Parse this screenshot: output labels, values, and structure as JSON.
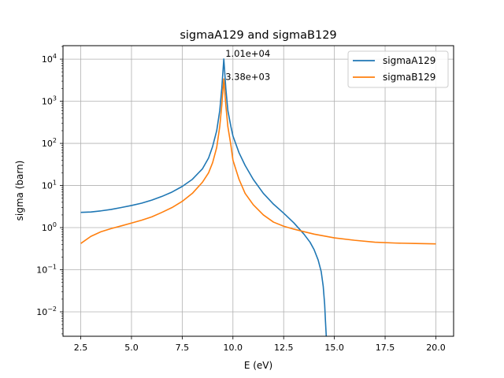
{
  "chart_data": {
    "type": "line",
    "title": "sigmaA129 and sigmaB129",
    "xlabel": "E (eV)",
    "ylabel": "sigma (barn)",
    "xlim": [
      1.625,
      20.875
    ],
    "ylim_log10": [
      -2.58,
      4.32
    ],
    "yscale": "log",
    "grid": true,
    "legend_position": "top-right",
    "x_ticks": [
      {
        "value": 2.5,
        "label": "2.5"
      },
      {
        "value": 5.0,
        "label": "5.0"
      },
      {
        "value": 7.5,
        "label": "7.5"
      },
      {
        "value": 10.0,
        "label": "10.0"
      },
      {
        "value": 12.5,
        "label": "12.5"
      },
      {
        "value": 15.0,
        "label": "15.0"
      },
      {
        "value": 17.5,
        "label": "17.5"
      },
      {
        "value": 20.0,
        "label": "20.0"
      }
    ],
    "y_ticks": [
      {
        "log10": -2,
        "base": "10",
        "exp": "−2"
      },
      {
        "log10": -1,
        "base": "10",
        "exp": "−1"
      },
      {
        "log10": 0,
        "base": "10",
        "exp": "0"
      },
      {
        "log10": 1,
        "base": "10",
        "exp": "1"
      },
      {
        "log10": 2,
        "base": "10",
        "exp": "2"
      },
      {
        "log10": 3,
        "base": "10",
        "exp": "3"
      },
      {
        "log10": 4,
        "base": "10",
        "exp": "4"
      }
    ],
    "series": [
      {
        "name": "sigmaA129",
        "color": "#1f77b4",
        "points": [
          [
            2.5,
            2.3
          ],
          [
            3.0,
            2.35
          ],
          [
            3.5,
            2.5
          ],
          [
            4.0,
            2.7
          ],
          [
            4.5,
            3.0
          ],
          [
            5.0,
            3.35
          ],
          [
            5.5,
            3.8
          ],
          [
            6.0,
            4.5
          ],
          [
            6.5,
            5.5
          ],
          [
            7.0,
            7.0
          ],
          [
            7.5,
            9.5
          ],
          [
            8.0,
            14
          ],
          [
            8.5,
            25
          ],
          [
            8.8,
            45
          ],
          [
            9.0,
            85
          ],
          [
            9.2,
            200
          ],
          [
            9.35,
            600
          ],
          [
            9.45,
            2000
          ],
          [
            9.55,
            10100
          ],
          [
            9.65,
            2000
          ],
          [
            9.75,
            600
          ],
          [
            9.9,
            250
          ],
          [
            10.0,
            150
          ],
          [
            10.3,
            60
          ],
          [
            10.6,
            30
          ],
          [
            11.0,
            14
          ],
          [
            11.5,
            6.5
          ],
          [
            12.0,
            3.6
          ],
          [
            12.5,
            2.2
          ],
          [
            13.0,
            1.3
          ],
          [
            13.5,
            0.7
          ],
          [
            13.8,
            0.45
          ],
          [
            14.0,
            0.3
          ],
          [
            14.2,
            0.17
          ],
          [
            14.35,
            0.09
          ],
          [
            14.45,
            0.04
          ],
          [
            14.52,
            0.015
          ],
          [
            14.56,
            0.006
          ],
          [
            14.6,
            0.0026
          ]
        ]
      },
      {
        "name": "sigmaB129",
        "color": "#ff7f0e",
        "points": [
          [
            2.5,
            0.42
          ],
          [
            3.0,
            0.62
          ],
          [
            3.5,
            0.8
          ],
          [
            4.0,
            0.95
          ],
          [
            4.5,
            1.1
          ],
          [
            5.0,
            1.28
          ],
          [
            5.5,
            1.5
          ],
          [
            6.0,
            1.8
          ],
          [
            6.5,
            2.3
          ],
          [
            7.0,
            3.0
          ],
          [
            7.5,
            4.2
          ],
          [
            8.0,
            6.5
          ],
          [
            8.5,
            12
          ],
          [
            8.8,
            20
          ],
          [
            9.0,
            35
          ],
          [
            9.2,
            80
          ],
          [
            9.35,
            250
          ],
          [
            9.45,
            800
          ],
          [
            9.55,
            3380
          ],
          [
            9.65,
            800
          ],
          [
            9.75,
            250
          ],
          [
            9.9,
            90
          ],
          [
            10.0,
            40
          ],
          [
            10.3,
            14
          ],
          [
            10.6,
            6.5
          ],
          [
            11.0,
            3.5
          ],
          [
            11.5,
            2.0
          ],
          [
            12.0,
            1.35
          ],
          [
            12.5,
            1.08
          ],
          [
            13.0,
            0.92
          ],
          [
            13.5,
            0.8
          ],
          [
            14.0,
            0.7
          ],
          [
            15.0,
            0.57
          ],
          [
            16.0,
            0.5
          ],
          [
            17.0,
            0.45
          ],
          [
            18.0,
            0.43
          ],
          [
            19.0,
            0.42
          ],
          [
            20.0,
            0.41
          ]
        ]
      }
    ],
    "annotations": [
      {
        "text": "1.01e+04",
        "x": 9.55,
        "y": 10100
      },
      {
        "text": "3.38e+03",
        "x": 9.55,
        "y": 3380
      }
    ]
  }
}
